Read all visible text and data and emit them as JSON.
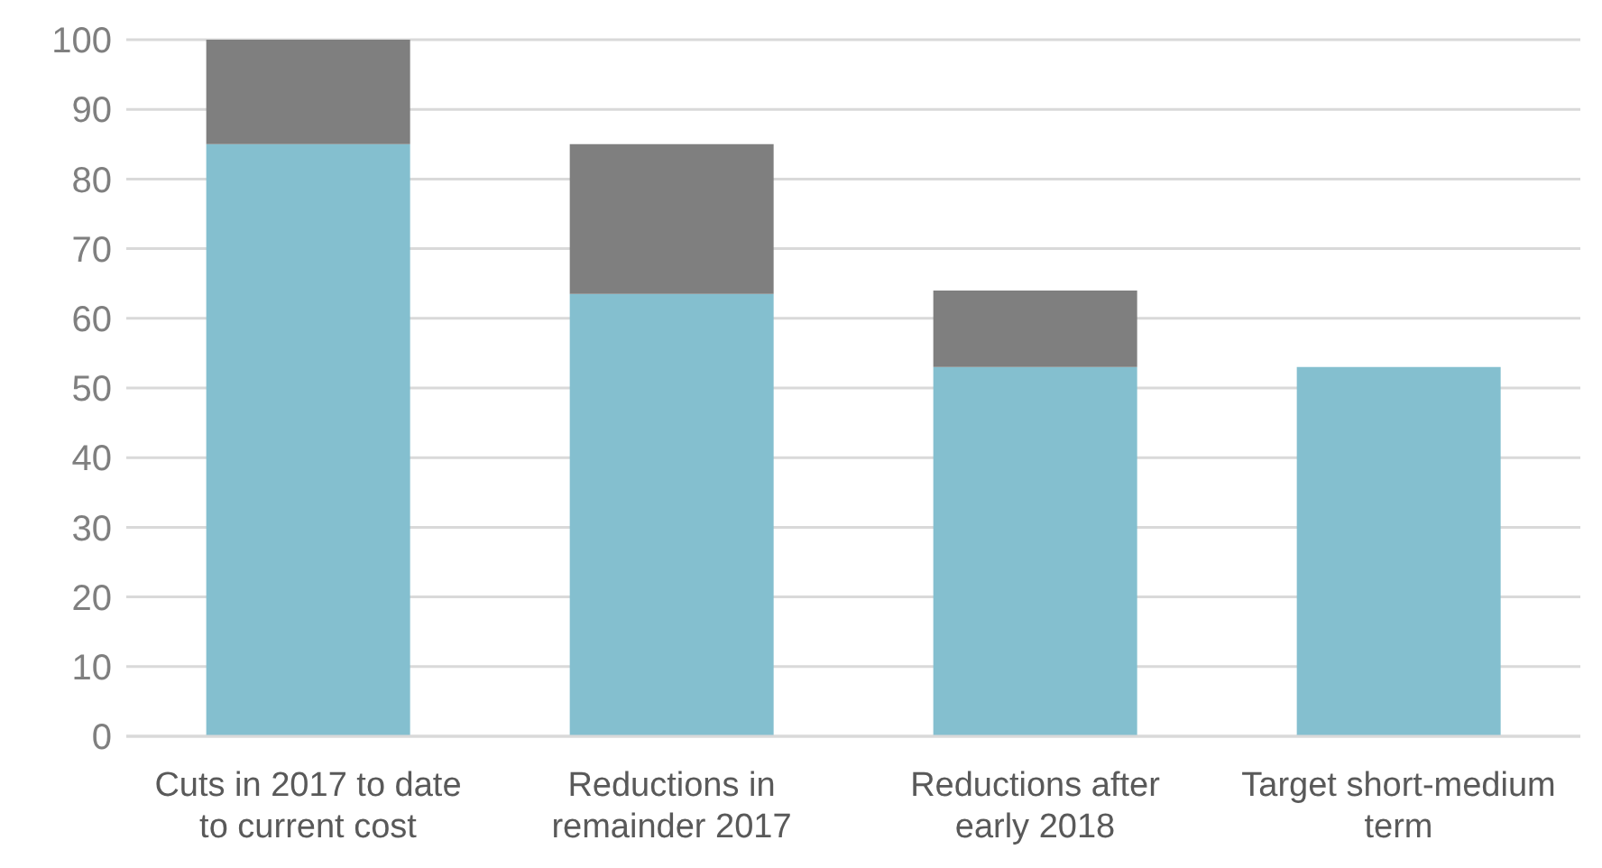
{
  "chart_data": {
    "type": "bar",
    "stacked": true,
    "categories": [
      "Cuts in 2017 to date to current cost",
      "Reductions in remainder 2017",
      "Reductions after early 2018",
      "Target short-medium term"
    ],
    "series": [
      {
        "color": "#84bfcf",
        "values": [
          85,
          63.5,
          53,
          53
        ]
      },
      {
        "color": "#7f7f7f",
        "values": [
          15,
          21.5,
          11,
          null
        ]
      }
    ],
    "ylim": [
      0,
      100
    ],
    "yticks": [
      0,
      10,
      20,
      30,
      40,
      50,
      60,
      70,
      80,
      90,
      100
    ],
    "grid": "y"
  }
}
